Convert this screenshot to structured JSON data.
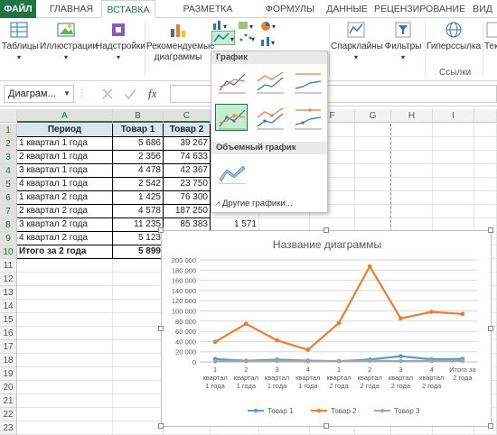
{
  "ribbon_tabs": [
    "ФАЙЛ",
    "ГЛАВНАЯ",
    "ВСТАВКА",
    "РАЗМЕТКА СТРАНИЦЫ",
    "ФОРМУЛЫ",
    "ДАННЫЕ",
    "РЕЦЕНЗИРОВАНИЕ",
    "ВИД"
  ],
  "ribbon": {
    "tables": "Таблицы",
    "illustrations": "Иллюстрации",
    "addins": "Надстройки",
    "recommended_line1": "Рекомендуемые",
    "recommended_line2": "диаграммы",
    "sparklines": "Спарклайны",
    "filters": "Фильтры",
    "hyperlink": "Гиперссылка",
    "text_partial": "Тек",
    "links_group": "Ссылки"
  },
  "formula_bar": {
    "namebox": "Диаграм...",
    "fx": "fx"
  },
  "columns": [
    "A",
    "B",
    "C",
    "D",
    "E",
    "F",
    "G",
    "H",
    "I"
  ],
  "rows": [
    "1",
    "2",
    "3",
    "4",
    "5",
    "6",
    "7",
    "8",
    "9",
    "10",
    "11",
    "12",
    "13",
    "14",
    "15",
    "16",
    "17",
    "18",
    "19",
    "20",
    "21",
    "22",
    "23"
  ],
  "table": {
    "header": [
      "Период",
      "Товар 1",
      "Товар 2"
    ],
    "rows": [
      [
        "1 квартал 1 года",
        "5 686",
        "39 267"
      ],
      [
        "2 квартал 1 года",
        "2 356",
        "74 633"
      ],
      [
        "3 квартал 1 года",
        "4 478",
        "42 367"
      ],
      [
        "4 квартал 1 года",
        "2 542",
        "23 750"
      ],
      [
        "1 квартал 2 года",
        "1 425",
        "76 300"
      ],
      [
        "2 квартал 2 года",
        "4 578",
        "187 250"
      ],
      [
        "3 квартал 2 года",
        "11 235",
        "85 383"
      ],
      [
        "4 квартал 2 года",
        "5 123",
        ""
      ],
      [
        "Итого за 2 года",
        "5 899",
        ""
      ]
    ],
    "d_visible": [
      "",
      "",
      "",
      "",
      "",
      "",
      "1 571",
      "",
      ""
    ]
  },
  "dropdown": {
    "section1": "График",
    "section2": "Объемный график",
    "more": "Другие графики..."
  },
  "chart_data": {
    "type": "line",
    "title": "Название диаграммы",
    "categories": [
      "1 квартал 1 года",
      "2 квартал 1 года",
      "3 квартал 1 года",
      "4 квартал 1 года",
      "1 квартал 2 года",
      "2 квартал 2 года",
      "3 квартал 2 года",
      "4 квартал 2 года",
      "Итого за 2 года"
    ],
    "category_lines": [
      [
        "1",
        "квартал",
        "1 года"
      ],
      [
        "2",
        "квартал",
        "1 года"
      ],
      [
        "3",
        "квартал",
        "1 года"
      ],
      [
        "4",
        "квартал",
        "1 года"
      ],
      [
        "1",
        "квартал",
        "2 года"
      ],
      [
        "2",
        "квартал",
        "2 года"
      ],
      [
        "3",
        "квартал",
        "2 года"
      ],
      [
        "4",
        "квартал",
        "2 года"
      ],
      [
        "Итого за",
        "2 года",
        ""
      ]
    ],
    "yticks": [
      "0",
      "20 000",
      "40 000",
      "60 000",
      "80 000",
      "100 000",
      "120 000",
      "140 000",
      "160 000",
      "180 000",
      "200 000"
    ],
    "ylim": [
      0,
      200000
    ],
    "series": [
      {
        "name": "Товар 1",
        "color": "#5b9bd5",
        "values": [
          5686,
          2356,
          4478,
          2542,
          1425,
          4578,
          11235,
          5123,
          5899
        ]
      },
      {
        "name": "Товар 2",
        "color": "#ed7d31",
        "values": [
          39267,
          74633,
          42367,
          23750,
          76300,
          187250,
          85383,
          98000,
          94000
        ]
      },
      {
        "name": "Товар 3",
        "color": "#a5a5a5",
        "values": [
          1200,
          1500,
          2000,
          1300,
          1800,
          2200,
          1571,
          1900,
          2100
        ]
      }
    ]
  },
  "colors": {
    "excel_green": "#217346",
    "table_header": "#dde4f0",
    "series1": "#5b9bd5",
    "series2": "#ed7d31",
    "series3": "#a5a5a5"
  }
}
